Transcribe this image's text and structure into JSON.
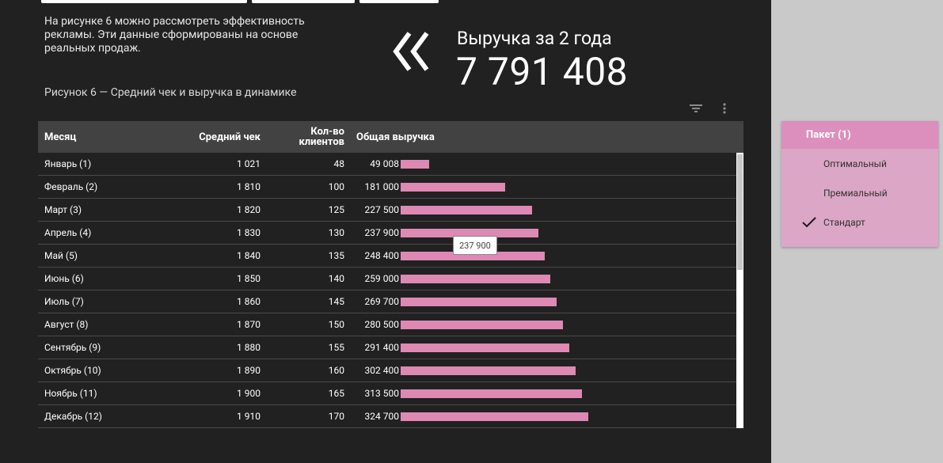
{
  "report": {
    "intro": "На рисунке 6 можно рассмотреть эффективность рекламы. Эти данные сформированы на основе реальных продаж.",
    "caption": "Рисунок 6 — Средний чек и выручка в динамике",
    "kpi": {
      "label": "Выручка за 2 года",
      "value": "7 791 408"
    }
  },
  "table": {
    "headers": {
      "month": "Месяц",
      "avg": "Средний чек",
      "count_line1": "Кол-во",
      "count_line2": "клиентов",
      "revenue": "Общая выручка"
    },
    "rows": [
      {
        "month": "Январь (1)",
        "avg": "1 021",
        "count": "48",
        "revenue": "49 008",
        "revenue_num": 49008
      },
      {
        "month": "Февраль (2)",
        "avg": "1 810",
        "count": "100",
        "revenue": "181 000",
        "revenue_num": 181000
      },
      {
        "month": "Март (3)",
        "avg": "1 820",
        "count": "125",
        "revenue": "227 500",
        "revenue_num": 227500
      },
      {
        "month": "Апрель (4)",
        "avg": "1 830",
        "count": "130",
        "revenue": "237 900",
        "revenue_num": 237900
      },
      {
        "month": "Май (5)",
        "avg": "1 840",
        "count": "135",
        "revenue": "248 400",
        "revenue_num": 248400
      },
      {
        "month": "Июнь (6)",
        "avg": "1 850",
        "count": "140",
        "revenue": "259 000",
        "revenue_num": 259000
      },
      {
        "month": "Июль (7)",
        "avg": "1 860",
        "count": "145",
        "revenue": "269 700",
        "revenue_num": 269700
      },
      {
        "month": "Август (8)",
        "avg": "1 870",
        "count": "150",
        "revenue": "280 500",
        "revenue_num": 280500
      },
      {
        "month": "Сентябрь (9)",
        "avg": "1 880",
        "count": "155",
        "revenue": "291 400",
        "revenue_num": 291400
      },
      {
        "month": "Октябрь (10)",
        "avg": "1 890",
        "count": "160",
        "revenue": "302 400",
        "revenue_num": 302400
      },
      {
        "month": "Ноябрь (11)",
        "avg": "1 900",
        "count": "165",
        "revenue": "313 500",
        "revenue_num": 313500
      },
      {
        "month": "Декабрь (12)",
        "avg": "1 910",
        "count": "170",
        "revenue": "324 700",
        "revenue_num": 324700
      }
    ],
    "bar_color": "#de88b4",
    "bar_scale_max": 580000,
    "scroll_fraction": 0.42,
    "tooltip": "237 900"
  },
  "filter": {
    "title": "Пакет (1)",
    "options": [
      {
        "label": "Оптимальный",
        "selected": false
      },
      {
        "label": "Премиальный",
        "selected": false
      },
      {
        "label": "Стандарт",
        "selected": true
      }
    ]
  },
  "icons": {
    "back": "chevron-double-left-icon",
    "filter": "filter-icon",
    "more": "more-vert-icon",
    "check": "check-icon"
  },
  "colors": {
    "dark_bg": "#212121",
    "header_bg": "#424242",
    "accent_pink": "#de88b4",
    "filter_header": "#dc8fbd",
    "filter_bg": "#dca6c6"
  }
}
